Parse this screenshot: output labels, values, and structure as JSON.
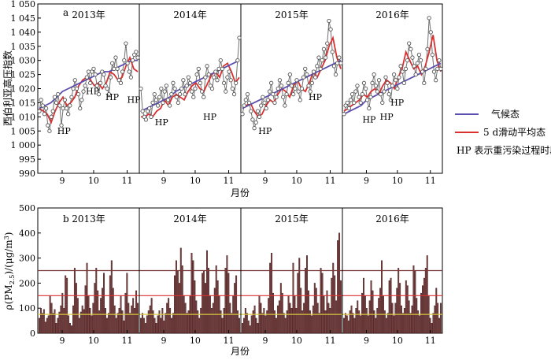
{
  "chart_data": [
    {
      "panel": "a",
      "type": "line",
      "ylabel": "西伯利亚高压指数",
      "xlabel": "月份",
      "ylim": [
        990,
        1050
      ],
      "yticks": [
        990,
        995,
        1000,
        1005,
        1010,
        1015,
        1020,
        1025,
        1030,
        1035,
        1040,
        1045,
        1050
      ],
      "ytick_labels": [
        "990",
        "995",
        "1 000",
        "1 005",
        "1 010",
        "1 015",
        "1 020",
        "1 025",
        "1 030",
        "1 035",
        "1 040",
        "1 045",
        "1 050"
      ],
      "xtick_labels": [
        "9",
        "10",
        "11"
      ],
      "legend": {
        "climatology": "气候态",
        "smoothed": "5 d滑动平均态",
        "note": "HP 表示重污染过程时段"
      },
      "colors": {
        "climatology": "#5b4fb0",
        "smoothed": "#d93030",
        "daily": "#707070"
      },
      "hp_label": "HP",
      "years": [
        {
          "year": "2013年",
          "climatology": [
            1013,
            1014,
            1015,
            1017,
            1019,
            1020,
            1021,
            1022,
            1023,
            1024,
            1025,
            1026,
            1026,
            1027,
            1028,
            1029,
            1030,
            1030
          ],
          "smoothed": [
            1013,
            1012,
            1011,
            1008,
            1012,
            1015,
            1017,
            1014,
            1015,
            1017,
            1021,
            1023,
            1024,
            1023,
            1021,
            1022,
            1020,
            1022,
            1026,
            1025,
            1023,
            1024,
            1028,
            1031,
            1027,
            1026
          ],
          "daily": [
            1012,
            1016,
            1014,
            1011,
            1013,
            1007,
            1005,
            1010,
            1012,
            1017,
            1015,
            1018,
            1014,
            1007,
            1013,
            1016,
            1013,
            1011,
            1014,
            1017,
            1020,
            1023,
            1020,
            1018,
            1013,
            1016,
            1019,
            1021,
            1024,
            1026,
            1022,
            1026,
            1027,
            1025,
            1021,
            1018,
            1022,
            1026,
            1025,
            1021,
            1020,
            1018,
            1024,
            1029,
            1027,
            1031,
            1027,
            1023,
            1022,
            1026,
            1030,
            1036,
            1029,
            1026,
            1024,
            1030,
            1032,
            1033,
            1031
          ],
          "hp": [
            {
              "at": 0.25,
              "value": 1004
            },
            {
              "at": 0.54,
              "value": 1018
            },
            {
              "at": 0.74,
              "value": 1016
            },
            {
              "at": 0.96,
              "value": 1015
            }
          ]
        },
        {
          "year": "2014年",
          "climatology": [
            1012,
            1013,
            1014,
            1015,
            1016,
            1017,
            1019,
            1020,
            1021,
            1022,
            1023,
            1024,
            1025,
            1026,
            1027,
            1028,
            1029,
            1030
          ],
          "smoothed": [
            1010,
            1010,
            1011,
            1010,
            1012,
            1013,
            1016,
            1014,
            1017,
            1018,
            1017,
            1016,
            1019,
            1021,
            1022,
            1020,
            1019,
            1022,
            1025,
            1026,
            1024,
            1028,
            1029,
            1026,
            1022,
            1024
          ],
          "daily": [
            1020,
            1012,
            1010,
            1009,
            1012,
            1013,
            1010,
            1015,
            1018,
            1016,
            1014,
            1017,
            1020,
            1015,
            1019,
            1021,
            1016,
            1014,
            1018,
            1022,
            1020,
            1017,
            1015,
            1018,
            1020,
            1023,
            1018,
            1021,
            1024,
            1022,
            1019,
            1017,
            1020,
            1025,
            1027,
            1022,
            1019,
            1017,
            1024,
            1028,
            1025,
            1021,
            1020,
            1024,
            1026,
            1023,
            1027,
            1030,
            1027,
            1022,
            1019,
            1024,
            1026,
            1023,
            1020,
            1018,
            1022,
            1030,
            1038
          ],
          "hp": [
            {
              "at": 0.21,
              "value": 1007
            },
            {
              "at": 0.7,
              "value": 1009
            }
          ]
        },
        {
          "year": "2015年",
          "climatology": [
            1013,
            1014,
            1015,
            1016,
            1017,
            1018,
            1019,
            1020,
            1021,
            1022,
            1023,
            1024,
            1025,
            1026,
            1027,
            1028,
            1029,
            1030
          ],
          "smoothed": [
            1013,
            1014,
            1015,
            1012,
            1010,
            1011,
            1014,
            1016,
            1015,
            1018,
            1020,
            1019,
            1017,
            1021,
            1023,
            1020,
            1019,
            1022,
            1026,
            1024,
            1027,
            1030,
            1035,
            1038,
            1031,
            1027
          ],
          "daily": [
            1011,
            1014,
            1016,
            1018,
            1015,
            1012,
            1009,
            1006,
            1008,
            1012,
            1010,
            1014,
            1017,
            1015,
            1013,
            1016,
            1019,
            1022,
            1018,
            1015,
            1017,
            1020,
            1023,
            1021,
            1017,
            1014,
            1018,
            1022,
            1025,
            1021,
            1018,
            1020,
            1023,
            1019,
            1016,
            1020,
            1024,
            1027,
            1025,
            1021,
            1019,
            1022,
            1026,
            1024,
            1028,
            1031,
            1027,
            1030,
            1034,
            1031,
            1036,
            1044,
            1041,
            1033,
            1028,
            1025,
            1029,
            1031,
            1029
          ],
          "hp": [
            {
              "at": 0.23,
              "value": 1004
            },
            {
              "at": 0.74,
              "value": 1016
            }
          ]
        },
        {
          "year": "2016年",
          "climatology": [
            1011,
            1012,
            1013,
            1014,
            1016,
            1017,
            1018,
            1019,
            1020,
            1021,
            1022,
            1023,
            1024,
            1025,
            1026,
            1027,
            1028,
            1029
          ],
          "smoothed": [
            1012,
            1013,
            1014,
            1015,
            1016,
            1018,
            1017,
            1019,
            1020,
            1018,
            1021,
            1023,
            1022,
            1020,
            1024,
            1027,
            1033,
            1030,
            1027,
            1028,
            1025,
            1028,
            1033,
            1039,
            1030,
            1026
          ],
          "daily": [
            1011,
            1014,
            1015,
            1013,
            1016,
            1018,
            1015,
            1019,
            1021,
            1017,
            1015,
            1018,
            1022,
            1020,
            1016,
            1013,
            1017,
            1022,
            1025,
            1021,
            1019,
            1023,
            1018,
            1015,
            1019,
            1024,
            1022,
            1018,
            1016,
            1021,
            1025,
            1023,
            1020,
            1024,
            1028,
            1026,
            1022,
            1027,
            1030,
            1036,
            1034,
            1031,
            1028,
            1025,
            1029,
            1032,
            1030,
            1026,
            1022,
            1027,
            1034,
            1045,
            1040,
            1032,
            1026,
            1023,
            1027,
            1030,
            1027
          ],
          "hp": [
            {
              "at": 0.26,
              "value": 1008
            },
            {
              "at": 0.44,
              "value": 1009
            },
            {
              "at": 0.55,
              "value": 1014
            }
          ]
        }
      ]
    },
    {
      "panel": "b",
      "type": "bar",
      "ylabel": "ρ(PM2.5)/(μg/m3)",
      "xlabel": "月份",
      "ylim": [
        0,
        500
      ],
      "yticks": [
        0,
        100,
        200,
        300,
        400,
        500
      ],
      "ytick_labels": [
        "0",
        "100",
        "200",
        "300",
        "400",
        "500"
      ],
      "xtick_labels": [
        "9",
        "10",
        "11"
      ],
      "thresholds": [
        {
          "value": 250,
          "color": "#7a3a3a"
        },
        {
          "value": 150,
          "color": "#d93030"
        },
        {
          "value": 75,
          "color": "#d8c840"
        }
      ],
      "colors": {
        "bar": "#7a4040",
        "bar_edge": "#3a1414"
      },
      "years": [
        {
          "year": "2013年",
          "values": [
            60,
            100,
            80,
            95,
            45,
            60,
            70,
            150,
            120,
            80,
            95,
            40,
            60,
            85,
            110,
            160,
            100,
            230,
            220,
            70,
            40,
            30,
            110,
            260,
            200,
            140,
            60,
            85,
            110,
            95,
            190,
            280,
            150,
            100,
            70,
            120,
            200,
            260,
            170,
            90,
            140,
            180,
            240,
            100,
            60,
            80,
            230,
            290,
            180,
            110,
            60,
            80,
            100,
            150,
            90,
            50,
            160,
            240,
            120,
            80,
            110,
            140,
            100,
            170,
            120
          ]
        },
        {
          "year": "2014年",
          "values": [
            60,
            80,
            60,
            40,
            70,
            90,
            110,
            140,
            90,
            60,
            40,
            70,
            90,
            60,
            100,
            50,
            80,
            120,
            140,
            100,
            60,
            80,
            230,
            290,
            250,
            200,
            340,
            270,
            150,
            120,
            80,
            90,
            150,
            320,
            290,
            210,
            130,
            90,
            60,
            100,
            240,
            250,
            200,
            330,
            260,
            150,
            100,
            120,
            180,
            270,
            210,
            150,
            90,
            60,
            100,
            260,
            310,
            240,
            120,
            80,
            150,
            200,
            230,
            90,
            60
          ]
        },
        {
          "year": "2015年",
          "values": [
            40,
            60,
            100,
            80,
            50,
            30,
            70,
            90,
            110,
            60,
            40,
            150,
            120,
            80,
            100,
            70,
            90,
            140,
            280,
            320,
            160,
            90,
            60,
            110,
            130,
            200,
            160,
            80,
            60,
            90,
            150,
            120,
            100,
            280,
            150,
            100,
            240,
            300,
            180,
            90,
            120,
            260,
            310,
            170,
            90,
            70,
            110,
            200,
            180,
            120,
            80,
            260,
            240,
            150,
            90,
            170,
            120,
            100,
            220,
            280,
            230,
            130,
            370,
            400,
            210
          ]
        },
        {
          "year": "2016年",
          "values": [
            60,
            80,
            70,
            50,
            90,
            110,
            80,
            60,
            100,
            130,
            90,
            70,
            160,
            220,
            150,
            100,
            70,
            130,
            210,
            170,
            90,
            60,
            100,
            140,
            180,
            290,
            150,
            90,
            60,
            80,
            210,
            220,
            120,
            70,
            120,
            180,
            260,
            200,
            110,
            80,
            100,
            210,
            190,
            130,
            80,
            110,
            270,
            250,
            140,
            90,
            70,
            160,
            190,
            220,
            260,
            310,
            150,
            60,
            40,
            80,
            110,
            180,
            120,
            60,
            120
          ]
        }
      ]
    }
  ]
}
